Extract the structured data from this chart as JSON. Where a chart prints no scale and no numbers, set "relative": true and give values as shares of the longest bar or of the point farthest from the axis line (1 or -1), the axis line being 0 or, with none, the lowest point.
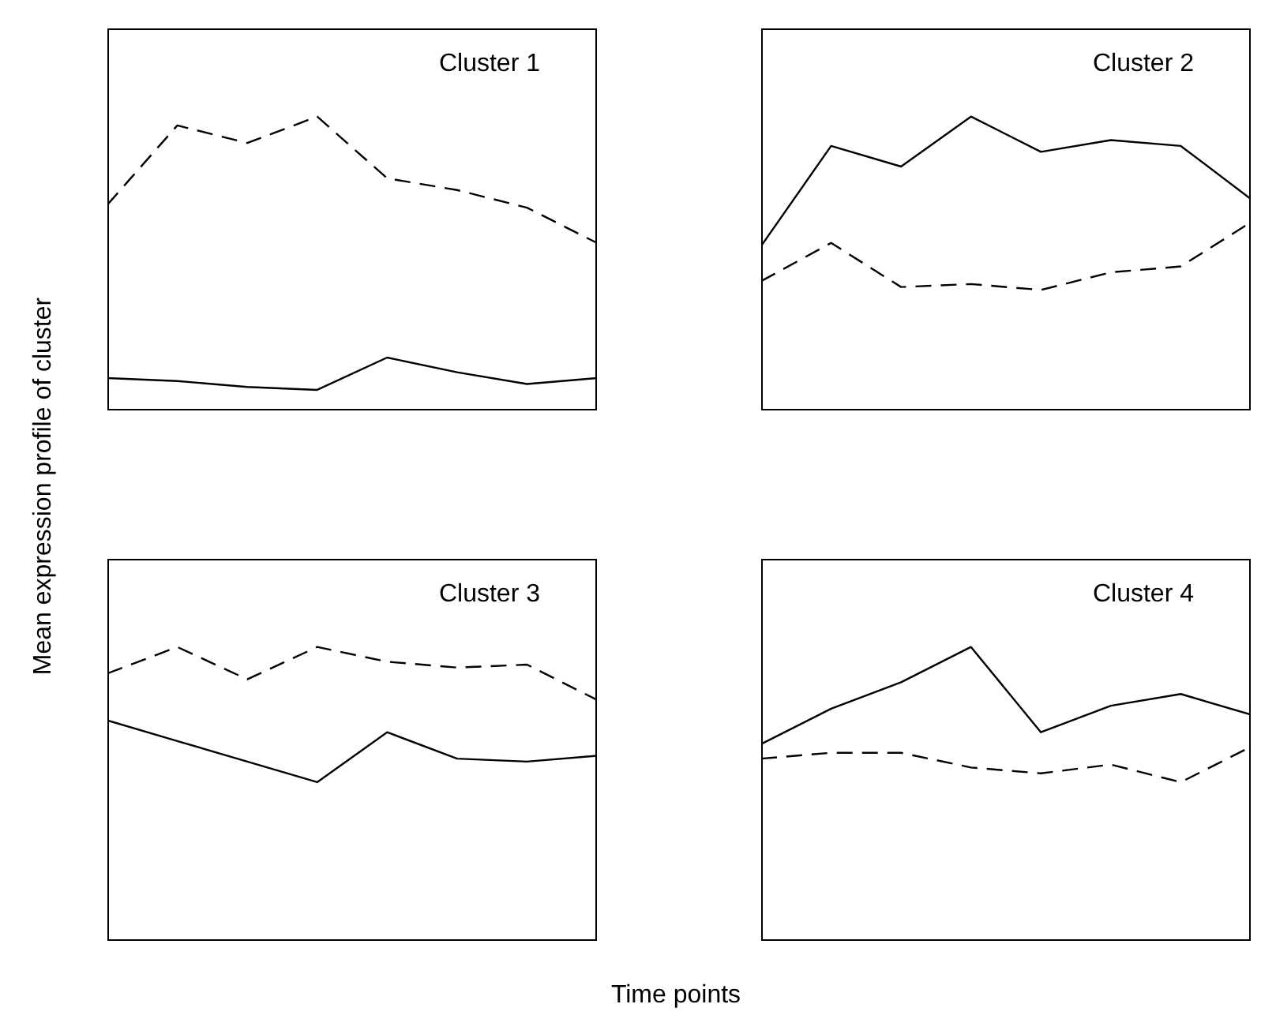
{
  "chart_data": [
    {
      "type": "line",
      "relative": true,
      "tick_labels": false,
      "ylabel": "Mean expression profile of cluster",
      "annotations": [
        "Cluster 1"
      ],
      "categories": [
        null,
        null,
        null,
        null,
        null,
        null,
        null,
        null
      ],
      "series": [
        {
          "color": "#000000",
          "line_style": "dashed",
          "values": [
            0.7,
            0.97,
            0.91,
            1,
            0.79,
            0.75,
            0.69,
            0.57
          ]
        },
        {
          "color": "#000000",
          "line_style": "solid",
          "values": [
            0.11,
            0.1,
            0.08,
            0.07,
            0.18,
            0.13,
            0.09,
            0.11
          ]
        }
      ]
    },
    {
      "type": "line",
      "relative": true,
      "tick_labels": false,
      "annotations": [
        "Cluster 2"
      ],
      "categories": [
        null,
        null,
        null,
        null,
        null,
        null,
        null,
        null
      ],
      "series": [
        {
          "color": "#000000",
          "line_style": "solid",
          "values": [
            0.56,
            0.9,
            0.83,
            1,
            0.88,
            0.92,
            0.9,
            0.72
          ]
        },
        {
          "color": "#000000",
          "line_style": "dashed",
          "values": [
            0.44,
            0.57,
            0.42,
            0.43,
            0.41,
            0.47,
            0.49,
            0.64
          ]
        }
      ]
    },
    {
      "type": "line",
      "relative": true,
      "tick_labels": false,
      "xlabel": "Time points",
      "annotations": [
        "Cluster 3"
      ],
      "categories": [
        null,
        null,
        null,
        null,
        null,
        null,
        null,
        null
      ],
      "series": [
        {
          "color": "#000000",
          "line_style": "dashed",
          "values": [
            0.91,
            1,
            0.89,
            1,
            0.95,
            0.93,
            0.94,
            0.82
          ]
        },
        {
          "color": "#000000",
          "line_style": "solid",
          "values": [
            0.75,
            0.68,
            0.61,
            0.54,
            0.71,
            0.62,
            0.61,
            0.63
          ]
        }
      ]
    },
    {
      "type": "line",
      "relative": true,
      "tick_labels": false,
      "annotations": [
        "Cluster 4"
      ],
      "categories": [
        null,
        null,
        null,
        null,
        null,
        null,
        null,
        null
      ],
      "series": [
        {
          "color": "#000000",
          "line_style": "solid",
          "values": [
            0.67,
            0.79,
            0.88,
            1,
            0.71,
            0.8,
            0.84,
            0.77
          ]
        },
        {
          "color": "#000000",
          "line_style": "dashed",
          "values": [
            0.62,
            0.64,
            0.64,
            0.59,
            0.57,
            0.6,
            0.54,
            0.66
          ]
        }
      ]
    }
  ]
}
